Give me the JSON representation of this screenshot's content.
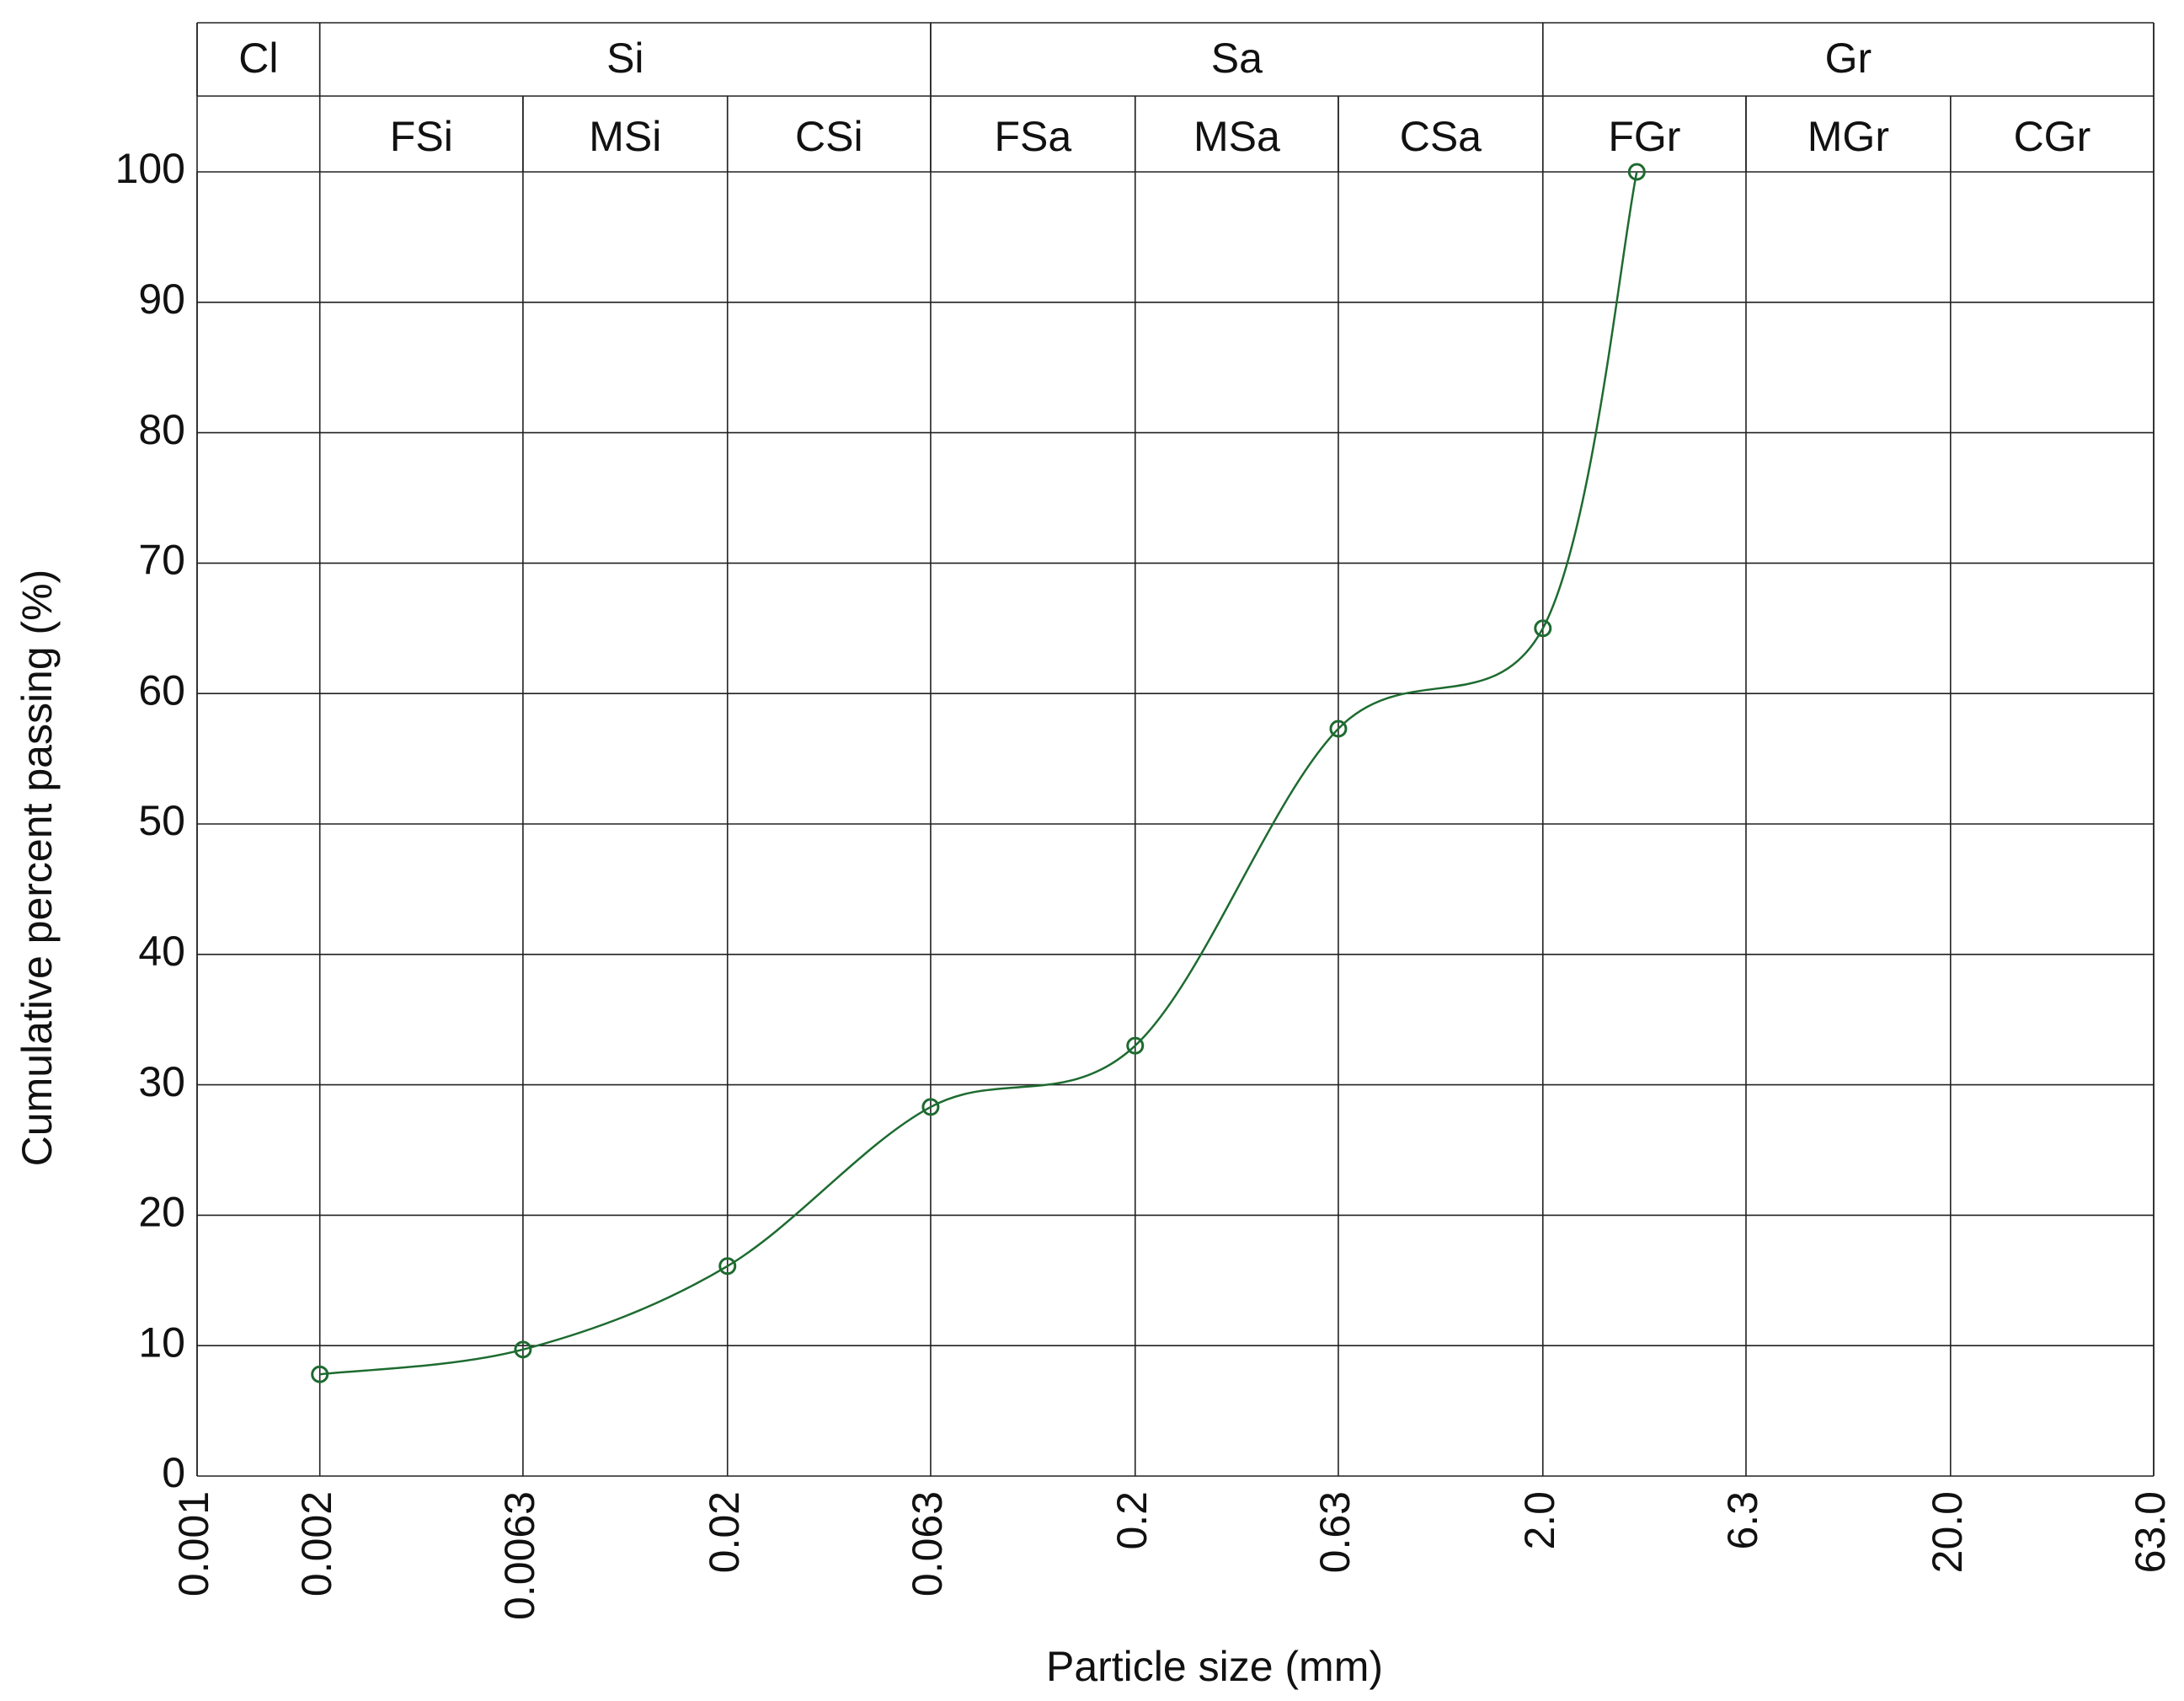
{
  "chart_data": {
    "type": "line",
    "x_label": "Particle size (mm)",
    "y_label": "Cumulative percent passing (%)",
    "x": [
      0.002,
      0.0063,
      0.02,
      0.063,
      0.2,
      0.63,
      2.0,
      3.4
    ],
    "values": [
      7.8,
      9.7,
      16.1,
      28.3,
      33.0,
      57.3,
      65.0,
      100
    ],
    "color": "#1d6b30",
    "x_log": true,
    "xlim": [
      0.001,
      63
    ],
    "xticks": [
      0.001,
      0.002,
      0.0063,
      0.02,
      0.063,
      0.2,
      0.63,
      {
        "value": 2,
        "label": "2.0"
      },
      6.3,
      {
        "value": 20,
        "label": "20.0"
      },
      {
        "value": 63,
        "label": "63.0"
      }
    ],
    "ylim": [
      0,
      100
    ],
    "yticks": [
      0,
      10,
      20,
      30,
      40,
      50,
      60,
      70,
      80,
      90,
      100
    ],
    "grid": true,
    "classes": [
      {
        "name": "Cl",
        "range": [
          0.001,
          0.002
        ]
      },
      {
        "name": "Si",
        "range": [
          0.002,
          0.063
        ]
      },
      {
        "name": "Sa",
        "range": [
          0.063,
          2
        ]
      },
      {
        "name": "Gr",
        "range": [
          2,
          63
        ]
      }
    ],
    "subclasses": [
      {
        "name": "FSi",
        "range": [
          0.002,
          0.0063
        ]
      },
      {
        "name": "MSi",
        "range": [
          0.0063,
          0.02
        ]
      },
      {
        "name": "CSi",
        "range": [
          0.02,
          0.063
        ]
      },
      {
        "name": "FSa",
        "range": [
          0.063,
          0.2
        ]
      },
      {
        "name": "MSa",
        "range": [
          0.2,
          0.63
        ]
      },
      {
        "name": "CSa",
        "range": [
          0.63,
          2
        ]
      },
      {
        "name": "FGr",
        "range": [
          2,
          6.3
        ]
      },
      {
        "name": "MGr",
        "range": [
          6.3,
          20
        ]
      },
      {
        "name": "CGr",
        "range": [
          20,
          63
        ]
      }
    ]
  }
}
